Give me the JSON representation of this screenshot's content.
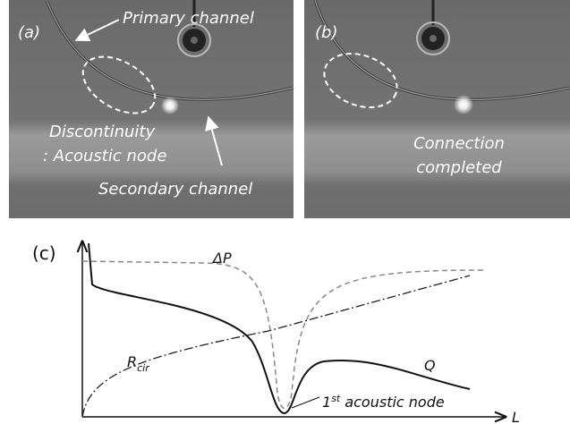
{
  "panels": [
    {
      "label": "(a)",
      "annotations": [
        "Primary channel",
        "Discontinuity",
        ": Acoustic node",
        "Secondary channel"
      ]
    },
    {
      "label": "(b)",
      "annotations": [
        "Connection",
        "completed"
      ]
    }
  ],
  "plot": {
    "label": "(c)",
    "pressure": "ΔP",
    "resistance": {
      "symbol": "R",
      "subscript": "cir"
    },
    "flow": "Q",
    "node": {
      "number": "1",
      "superscript": "st",
      "text": " acoustic node"
    },
    "axis": "L"
  }
}
